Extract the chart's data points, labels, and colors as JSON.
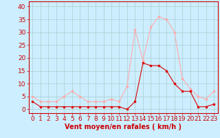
{
  "hours": [
    0,
    1,
    2,
    3,
    4,
    5,
    6,
    7,
    8,
    9,
    10,
    11,
    12,
    13,
    14,
    15,
    16,
    17,
    18,
    19,
    20,
    21,
    22,
    23
  ],
  "wind_avg": [
    3,
    1,
    1,
    1,
    1,
    1,
    1,
    1,
    1,
    1,
    1,
    1,
    0,
    3,
    18,
    17,
    17,
    15,
    10,
    7,
    7,
    1,
    1,
    2
  ],
  "wind_gust": [
    5,
    3,
    3,
    3,
    5,
    7,
    5,
    3,
    3,
    3,
    4,
    3,
    9,
    31,
    19,
    32,
    36,
    35,
    30,
    12,
    8,
    5,
    4,
    7
  ],
  "line_color_avg": "#dd0000",
  "line_color_gust": "#ffaaaa",
  "marker_size": 2.0,
  "bg_color": "#cceeff",
  "grid_color": "#aacccc",
  "xlabel": "Vent moyen/en rafales ( km/h )",
  "ylabel_ticks": [
    0,
    5,
    10,
    15,
    20,
    25,
    30,
    35,
    40
  ],
  "ylim": [
    -1.5,
    42
  ],
  "xlim": [
    -0.5,
    23.5
  ],
  "axis_color": "#cc0000",
  "tick_label_color": "#cc0000",
  "xlabel_color": "#cc0000",
  "xlabel_fontsize": 7,
  "tick_fontsize": 6.5
}
